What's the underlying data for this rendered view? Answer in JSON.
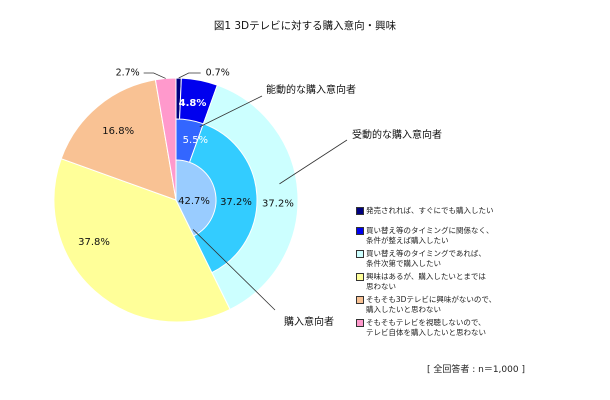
{
  "chart_data": {
    "type": "pie",
    "title": "図1 3Dテレビに対する購入意向・興味",
    "outer_ring": [
      {
        "label": "発売されれば、すぐにでも購入したい",
        "value": 0.7,
        "value_label": "0.7%",
        "color": "#000080"
      },
      {
        "label": "買い替え等のタイミングに関係なく、\n条件が整えば購入したい",
        "value": 4.8,
        "value_label": "4.8%",
        "color": "#0000ee"
      },
      {
        "label": "買い替え等のタイミングであれば、\n条件次第で購入したい",
        "value": 37.2,
        "value_label": "37.2%",
        "color": "#ccffff"
      },
      {
        "label": "興味はあるが、購入したいとまでは\n思わない",
        "value": 37.8,
        "value_label": "37.8%",
        "color": "#ffff99"
      },
      {
        "label": "そもそも3Dテレビに興味がないので、\n購入したいと思わない",
        "value": 16.8,
        "value_label": "16.8%",
        "color": "#f9c294"
      },
      {
        "label": "そもそもテレビを視聴しないので、\nテレビ自体を購入したいと思わない",
        "value": 2.7,
        "value_label": "2.7%",
        "color": "#ff99cc"
      }
    ],
    "middle_ring": [
      {
        "value": 5.5,
        "value_label": "5.5%",
        "color": "#3366ff"
      },
      {
        "value": 37.2,
        "value_label": "37.2%",
        "color": "#33ccff"
      }
    ],
    "inner_circle": {
      "value": 42.7,
      "value_label": "42.7%",
      "color": "#99ccff"
    },
    "annotations": {
      "active": "能動的な購入意向者",
      "passive": "受動的な購入意向者",
      "intent": "購入意向者"
    },
    "footnote": "[ 全回答者 : n＝1,000 ]"
  }
}
